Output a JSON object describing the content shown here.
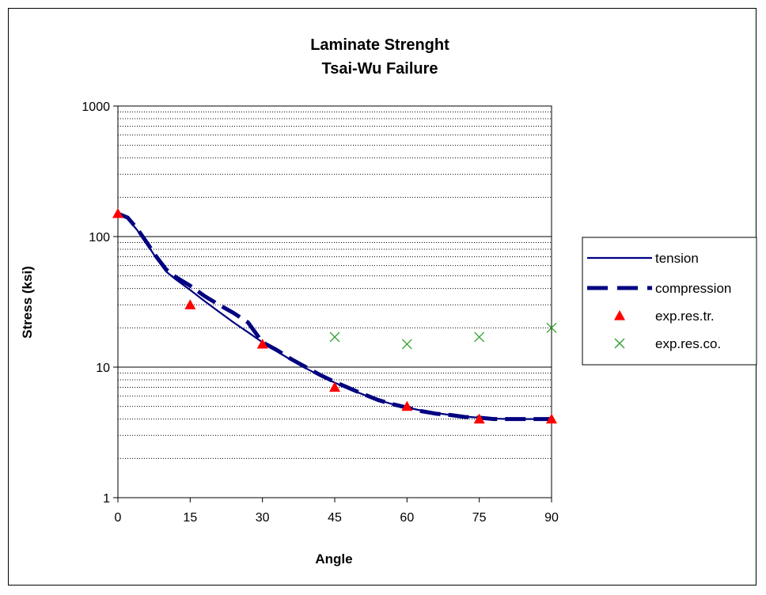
{
  "chart_data": {
    "type": "line",
    "title": [
      "Laminate Strenght",
      "Tsai-Wu Failure"
    ],
    "xlabel": "Angle",
    "ylabel": "Stress (ksi)",
    "xlim": [
      0,
      90
    ],
    "ylim": [
      1,
      1000
    ],
    "yscale": "log",
    "x_ticks": [
      "0",
      "15",
      "30",
      "45",
      "60",
      "75",
      "90"
    ],
    "y_ticks": [
      "1",
      "10",
      "100",
      "1000"
    ],
    "grid": "major solid, minor dotted horizontal",
    "legend_position": "right",
    "series": [
      {
        "name": "tension",
        "kind": "line",
        "style": "solid",
        "color": "#000080",
        "x": [
          0,
          2,
          4,
          6,
          8,
          10,
          12,
          15,
          18,
          21,
          24,
          27,
          30,
          33,
          36,
          39,
          42,
          45,
          48,
          51,
          54,
          57,
          60,
          63,
          66,
          69,
          72,
          75,
          78,
          81,
          84,
          87,
          90
        ],
        "y": [
          150,
          138,
          112,
          88,
          68,
          54,
          47,
          39,
          32,
          26.5,
          22,
          18.5,
          15.5,
          13.2,
          11.3,
          9.8,
          8.6,
          7.6,
          6.8,
          6.15,
          5.6,
          5.2,
          4.9,
          4.65,
          4.45,
          4.3,
          4.18,
          4.1,
          4.04,
          4.0,
          4.0,
          4.0,
          4.0
        ]
      },
      {
        "name": "compression",
        "kind": "line",
        "style": "dashed",
        "color": "#000080",
        "x": [
          0,
          2,
          4,
          6,
          8,
          10,
          12,
          15,
          18,
          21,
          24,
          27,
          30,
          33,
          36,
          39,
          42,
          45,
          48,
          51,
          54,
          57,
          60,
          63,
          66,
          69,
          72,
          75,
          78,
          81,
          84,
          87,
          90
        ],
        "y": [
          150,
          140,
          115,
          90,
          70,
          56,
          49,
          42,
          35,
          30,
          26,
          22,
          15.5,
          13.5,
          11.5,
          10,
          8.7,
          7.7,
          6.9,
          6.2,
          5.6,
          5.2,
          4.9,
          4.6,
          4.4,
          4.3,
          4.15,
          4.1,
          4.0,
          4.0,
          4.0,
          4.0,
          4.0
        ]
      },
      {
        "name": "exp.res.tr.",
        "kind": "scatter",
        "marker": "triangle",
        "color": "#ff0000",
        "x": [
          0,
          15,
          30,
          45,
          60,
          75,
          90
        ],
        "y": [
          150,
          30,
          15,
          7,
          5,
          4,
          4
        ]
      },
      {
        "name": "exp.res.co.",
        "kind": "scatter",
        "marker": "x",
        "color": "#2ca02c",
        "x": [
          45,
          60,
          75,
          90
        ],
        "y": [
          17,
          15,
          17,
          20
        ]
      }
    ]
  }
}
